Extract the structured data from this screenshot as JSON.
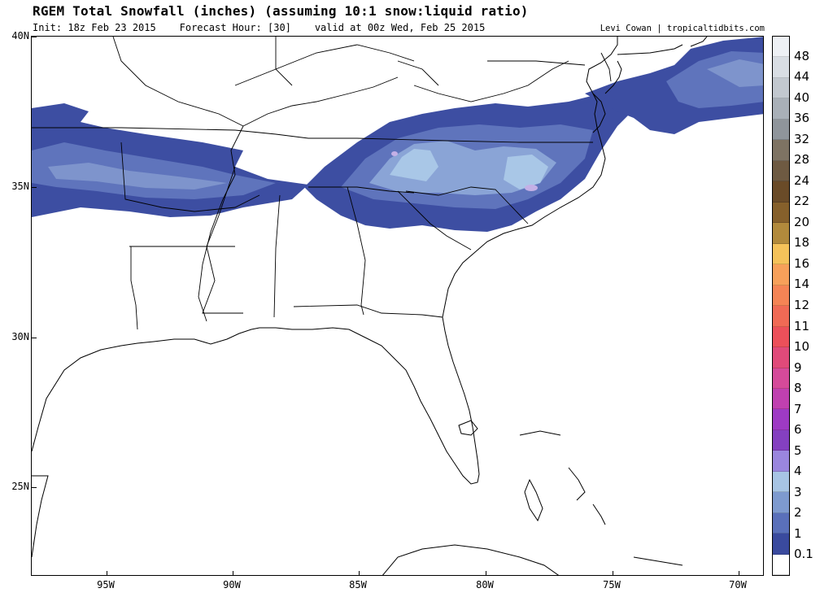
{
  "header": {
    "title": "RGEM Total Snowfall (inches) (assuming 10:1 snow:liquid ratio)",
    "init": "Init: 18z Feb 23 2015",
    "forecast_hour": "Forecast Hour: [30]",
    "valid": "valid at 00z Wed, Feb 25 2015",
    "credit": "Levi Cowan | tropicaltidbits.com"
  },
  "axes": {
    "lat_labels": [
      "40N",
      "35N",
      "30N",
      "25N"
    ],
    "lon_labels": [
      "95W",
      "90W",
      "85W",
      "80W",
      "75W",
      "70W"
    ]
  },
  "legend": {
    "labels": [
      "48",
      "44",
      "40",
      "36",
      "32",
      "28",
      "24",
      "22",
      "20",
      "18",
      "16",
      "14",
      "12",
      "11",
      "10",
      "9",
      "8",
      "7",
      "6",
      "5",
      "4",
      "3",
      "2",
      "1",
      "0.1"
    ],
    "colors": [
      "#e8edf2",
      "#d2d9e1",
      "#bbc3cc",
      "#a4acb5",
      "#8f9295",
      "#7f7467",
      "#6e5c48",
      "#6b4a2a",
      "#7a5426",
      "#9a6a22",
      "#bb8a2e",
      "#d9a640",
      "#f0c050",
      "#f7a05a",
      "#f58455",
      "#f06a55",
      "#ec505a",
      "#e04a7a",
      "#d54a9a",
      "#c040b0",
      "#9e3ac4",
      "#8440c0",
      "#7b52cc",
      "#9a86de",
      "#a9a8e2",
      "#a7c4e4",
      "#8ea8d8",
      "#6f86c6",
      "#5466b2",
      "#3a4a9e"
    ],
    "swatch_colors": [
      "#eef1f5",
      "#d9dee4",
      "#c2c8cf",
      "#a9b0b8",
      "#8f959b",
      "#7e7363",
      "#6e5a42",
      "#6a4b28",
      "#86602b",
      "#b28a3c",
      "#f5c25a",
      "#f7a05a",
      "#f58455",
      "#f06a55",
      "#ec505a",
      "#e04a7a",
      "#d54a9a",
      "#c040b0",
      "#9e3ac4",
      "#8440c0",
      "#9a86de",
      "#a7c4e4",
      "#7e9acf",
      "#5a70ba",
      "#3a4a9e",
      "#ffffff"
    ]
  },
  "map": {
    "land": "#ffffff",
    "snow_light": "#3d4ea2",
    "snow_mid": "#5f74bc",
    "snow_high": "#8aa4d6",
    "snow_peak": "#a9c7e7",
    "snow_max": "#b8a6e0"
  }
}
